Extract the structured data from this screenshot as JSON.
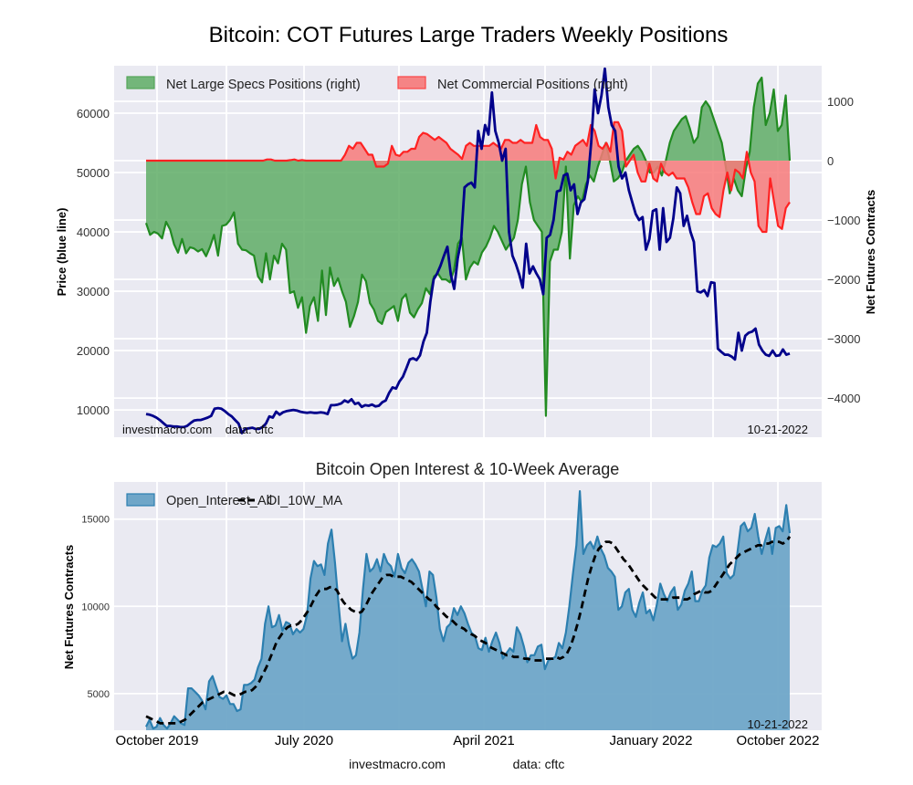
{
  "chart_data": [
    {
      "type": "line",
      "title": "Bitcoin: COT Futures Large Traders Weekly Positions",
      "ylabel_left": "Price (blue line)",
      "ylabel_right": "Net Futures Contracts",
      "yticks_left": [
        10000,
        20000,
        30000,
        40000,
        50000,
        60000
      ],
      "yticks_right": [
        -4000,
        -3000,
        -2000,
        -1000,
        0,
        1000
      ],
      "ylim_left": [
        5400,
        68000
      ],
      "ylim_right": [
        -4660,
        1600
      ],
      "grid": true,
      "legend_position": "top-left",
      "annotation_left": "investmacro.com    data: cftc",
      "annotation_right": "10-21-2022",
      "colors": {
        "price": "#00008b",
        "specs": "#228b22",
        "specs_fill": "#5fad66",
        "commercial": "#ff2222",
        "commercial_fill": "#f77a7a",
        "background": "#eaeaf2"
      },
      "series": [
        {
          "name": "Net Large Specs Positions (right)",
          "axis": "right",
          "values": [
            -1050,
            -1250,
            -1200,
            -1230,
            -1310,
            -1030,
            -1160,
            -1410,
            -1550,
            -1320,
            -1560,
            -1460,
            -1480,
            -1530,
            -1490,
            -1610,
            -1450,
            -1250,
            -1600,
            -1100,
            -1080,
            -1000,
            -870,
            -1400,
            -1500,
            -1510,
            -1560,
            -1600,
            -1950,
            -2050,
            -1560,
            -2000,
            -1600,
            -1730,
            -1400,
            -1500,
            -2230,
            -2200,
            -2480,
            -2300,
            -2900,
            -2450,
            -2300,
            -2700,
            -1850,
            -2600,
            -1800,
            -2110,
            -1980,
            -2200,
            -2380,
            -2800,
            -2620,
            -2380,
            -1920,
            -2030,
            -2400,
            -2510,
            -2700,
            -2750,
            -2550,
            -2500,
            -2450,
            -2700,
            -2330,
            -2250,
            -2560,
            -2640,
            -2500,
            -2400,
            -2150,
            -2250,
            -1950,
            -1900,
            -2000,
            -2000,
            -2050,
            -1850,
            -1400,
            -1300,
            -2000,
            -1800,
            -1700,
            -1750,
            -1550,
            -1450,
            -1300,
            -1100,
            -1200,
            -1350,
            -1500,
            -1400,
            -1300,
            -1000,
            -400,
            -100,
            -700,
            -1000,
            -1100,
            -1200,
            -4300,
            -1700,
            -1500,
            -1500,
            -1200,
            -100,
            -1650,
            -750,
            -600,
            -700,
            -400,
            -250,
            -350,
            -100,
            100,
            300,
            0,
            -350,
            -300,
            -200,
            0,
            100,
            200,
            250,
            150,
            0,
            -200,
            -200,
            -100,
            -250,
            0,
            300,
            500,
            600,
            700,
            750,
            550,
            300,
            400,
            900,
            1000,
            900,
            700,
            500,
            300,
            -100,
            -550,
            -300,
            -500,
            -600,
            -150,
            150,
            900,
            1300,
            1400,
            600,
            800,
            1200,
            500,
            600,
            1100,
            0
          ]
        },
        {
          "name": "Net Commercial Positions (right)",
          "axis": "right",
          "values": [
            0,
            0,
            0,
            0,
            0,
            0,
            0,
            0,
            0,
            0,
            0,
            0,
            0,
            0,
            0,
            0,
            0,
            0,
            0,
            0,
            0,
            0,
            0,
            0,
            0,
            0,
            0,
            0,
            0,
            0,
            0,
            20,
            20,
            0,
            0,
            0,
            0,
            10,
            20,
            0,
            10,
            0,
            0,
            0,
            0,
            0,
            0,
            0,
            0,
            0,
            0,
            100,
            250,
            200,
            300,
            300,
            200,
            100,
            100,
            -100,
            -100,
            -100,
            -50,
            250,
            100,
            80,
            150,
            150,
            200,
            200,
            400,
            470,
            450,
            400,
            350,
            400,
            350,
            300,
            200,
            150,
            100,
            30,
            250,
            300,
            250,
            250,
            250,
            250,
            250,
            300,
            250,
            200,
            350,
            350,
            300,
            300,
            350,
            300,
            300,
            300,
            600,
            400,
            350,
            350,
            200,
            -300,
            50,
            20,
            150,
            100,
            250,
            300,
            350,
            250,
            600,
            500,
            250,
            200,
            300,
            150,
            650,
            650,
            500,
            -100,
            0,
            100,
            -200,
            -350,
            -350,
            -50,
            -300,
            -350,
            -50,
            -200,
            -250,
            -200,
            -300,
            -300,
            -300,
            -450,
            -700,
            -900,
            -900,
            -600,
            -550,
            -800,
            -900,
            -950,
            -500,
            -200,
            -500,
            -150,
            -200,
            -300,
            150,
            -200,
            -350,
            -1100,
            -1200,
            -1200,
            -300,
            -700,
            -1100,
            -1150,
            -800,
            -700
          ]
        },
        {
          "name": "Price (blue line)",
          "axis": "left",
          "values": [
            9300,
            9200,
            9000,
            8700,
            8300,
            7800,
            7300,
            7300,
            7200,
            7200,
            7100,
            7100,
            7300,
            7800,
            8200,
            8300,
            8300,
            8500,
            8700,
            9000,
            10200,
            10300,
            10200,
            9800,
            9300,
            8900,
            8300,
            7700,
            6100,
            6800,
            6900,
            7000,
            6800,
            6800,
            7100,
            7700,
            8900,
            8700,
            9700,
            9200,
            9600,
            9800,
            9900,
            10000,
            9900,
            9700,
            9600,
            9500,
            9600,
            9500,
            9500,
            9600,
            9500,
            9300,
            10800,
            10800,
            10900,
            11100,
            11600,
            11300,
            11800,
            11000,
            11200,
            10500,
            10800,
            10700,
            10900,
            10600,
            10700,
            11300,
            11600,
            12900,
            13800,
            13600,
            14800,
            15600,
            17000,
            18500,
            18700,
            18400,
            19200,
            21500,
            23000,
            28200,
            32000,
            33000,
            34300,
            36000,
            37500,
            32800,
            30400,
            35500,
            38500,
            47500,
            48000,
            48300,
            47500,
            57000,
            54000,
            58000,
            56400,
            63500,
            57000,
            55000,
            52000,
            54000,
            40000,
            36000,
            34600,
            32800,
            30600,
            38000,
            33000,
            34200,
            33000,
            32000,
            29500,
            39000,
            39500,
            42000,
            46800,
            47000,
            49500,
            49800,
            47000,
            48000,
            43000,
            45000,
            45500,
            48500,
            55000,
            64000,
            60000,
            63000,
            67500,
            61000,
            58000,
            57000,
            51000,
            49000,
            50000,
            47000,
            45000,
            43000,
            42000,
            42500,
            37000,
            38800,
            43500,
            43800,
            37000,
            44000,
            38300,
            39000,
            42300,
            47500,
            46500,
            41000,
            42700,
            40000,
            38300,
            30000,
            29800,
            30200,
            29200,
            31500,
            31400,
            20300,
            19800,
            19300,
            19300,
            19000,
            18500,
            23000,
            20000,
            22500,
            23000,
            23200,
            23700,
            21000,
            20000,
            19300,
            19100,
            20000,
            19100,
            19200,
            20200,
            19300,
            19500
          ]
        }
      ]
    },
    {
      "type": "area",
      "title": "Bitcoin Open Interest & 10-Week Average",
      "ylabel": "Net Futures Contracts",
      "yticks": [
        5000,
        10000,
        15000
      ],
      "ylim": [
        2900,
        17130
      ],
      "xticks": [
        "October 2019",
        "July 2020",
        "April 2021",
        "January 2022",
        "October 2022"
      ],
      "grid": true,
      "legend_position": "top-left",
      "annotation_right": "10-21-2022",
      "colors": {
        "oi_line": "#2c7fb0",
        "oi_fill": "#6fa6c8",
        "ma": "#000000",
        "background": "#eaeaf2"
      },
      "series": [
        {
          "name": "Open_Interest_All",
          "values": [
            3100,
            3500,
            3000,
            3100,
            3600,
            3200,
            3000,
            3300,
            3700,
            3500,
            3300,
            3200,
            5300,
            5300,
            5100,
            4900,
            4600,
            4100,
            5700,
            6000,
            5400,
            4800,
            4700,
            4900,
            4400,
            4400,
            4000,
            4100,
            5500,
            5500,
            5600,
            5800,
            6500,
            7000,
            9000,
            10000,
            8800,
            8900,
            9500,
            8600,
            9100,
            9000,
            8400,
            8700,
            8500,
            8700,
            9500,
            11600,
            12600,
            12300,
            12400,
            11800,
            13600,
            14400,
            12500,
            10200,
            8000,
            9000,
            7800,
            7000,
            7200,
            8500,
            11000,
            13000,
            12000,
            12200,
            12700,
            12000,
            13000,
            12500,
            12300,
            11700,
            13000,
            12200,
            11900,
            12500,
            12700,
            12400,
            12000,
            11000,
            10000,
            12000,
            11800,
            10500,
            8700,
            8000,
            8800,
            9000,
            9900,
            9500,
            10000,
            9600,
            9000,
            8500,
            8300,
            7600,
            7500,
            8200,
            7400,
            8000,
            8500,
            7900,
            7000,
            7300,
            7600,
            7400,
            8800,
            8400,
            7700,
            6800,
            7200,
            7200,
            7700,
            7800,
            6400,
            6900,
            7000,
            7100,
            7900,
            7600,
            8500,
            10000,
            11800,
            13500,
            16600,
            13000,
            13500,
            13700,
            13300,
            14000,
            13300,
            12900,
            12200,
            12000,
            11700,
            9800,
            10000,
            10800,
            11000,
            9800,
            9400,
            10200,
            10800,
            9600,
            9800,
            9200,
            10100,
            11300,
            10700,
            10300,
            10800,
            11100,
            9800,
            10100,
            10900,
            11300,
            12000,
            10300,
            10300,
            10900,
            11200,
            12800,
            13500,
            13400,
            13600,
            14000,
            11900,
            11600,
            11800,
            13000,
            14600,
            14800,
            14300,
            14500,
            15300,
            14000,
            13000,
            13800,
            14500,
            13000,
            14500,
            14600,
            14300,
            15800,
            14200
          ]
        },
        {
          "name": "OI_10W_MA",
          "values": [
            3700,
            3600,
            3500,
            3400,
            3300,
            3300,
            3300,
            3300,
            3300,
            3300,
            3400,
            3500,
            3700,
            3900,
            4100,
            4300,
            4500,
            4600,
            4700,
            4800,
            4900,
            5000,
            5100,
            5100,
            5000,
            4900,
            4900,
            5000,
            5100,
            5100,
            5200,
            5400,
            5700,
            6100,
            6500,
            7000,
            7500,
            8000,
            8300,
            8600,
            8800,
            8900,
            8900,
            9000,
            9200,
            9500,
            9800,
            10200,
            10600,
            10900,
            11000,
            11000,
            11100,
            11100,
            10900,
            10500,
            10200,
            10000,
            9800,
            9700,
            9600,
            9700,
            10000,
            10400,
            10800,
            11100,
            11400,
            11700,
            11800,
            11800,
            11700,
            11700,
            11700,
            11600,
            11500,
            11400,
            11200,
            11000,
            10800,
            10600,
            10400,
            10300,
            10000,
            9800,
            9600,
            9400,
            9300,
            9100,
            8900,
            8800,
            8700,
            8500,
            8400,
            8300,
            8100,
            8000,
            7900,
            7700,
            7600,
            7500,
            7400,
            7300,
            7200,
            7200,
            7100,
            7100,
            7100,
            7000,
            7000,
            6900,
            6900,
            6900,
            6900,
            7000,
            7000,
            7000,
            7100,
            7000,
            7100,
            7300,
            7700,
            8300,
            9000,
            9800,
            10700,
            11600,
            12300,
            12900,
            13300,
            13500,
            13700,
            13700,
            13600,
            13300,
            13000,
            12700,
            12500,
            12200,
            11900,
            11600,
            11300,
            11100,
            10900,
            10700,
            10500,
            10400,
            10400,
            10400,
            10400,
            10500,
            10500,
            10500,
            10400,
            10400,
            10500,
            10700,
            10800,
            10900,
            10800,
            10800,
            10900,
            11200,
            11500,
            11800,
            12100,
            12400,
            12600,
            12800,
            13000,
            13100,
            13200,
            13300,
            13400,
            13500,
            13500,
            13600,
            13600,
            13700,
            13700,
            13700,
            13600,
            13700,
            14000
          ]
        }
      ]
    }
  ],
  "footer": {
    "site": "investmacro.com",
    "source": "data: cftc"
  }
}
